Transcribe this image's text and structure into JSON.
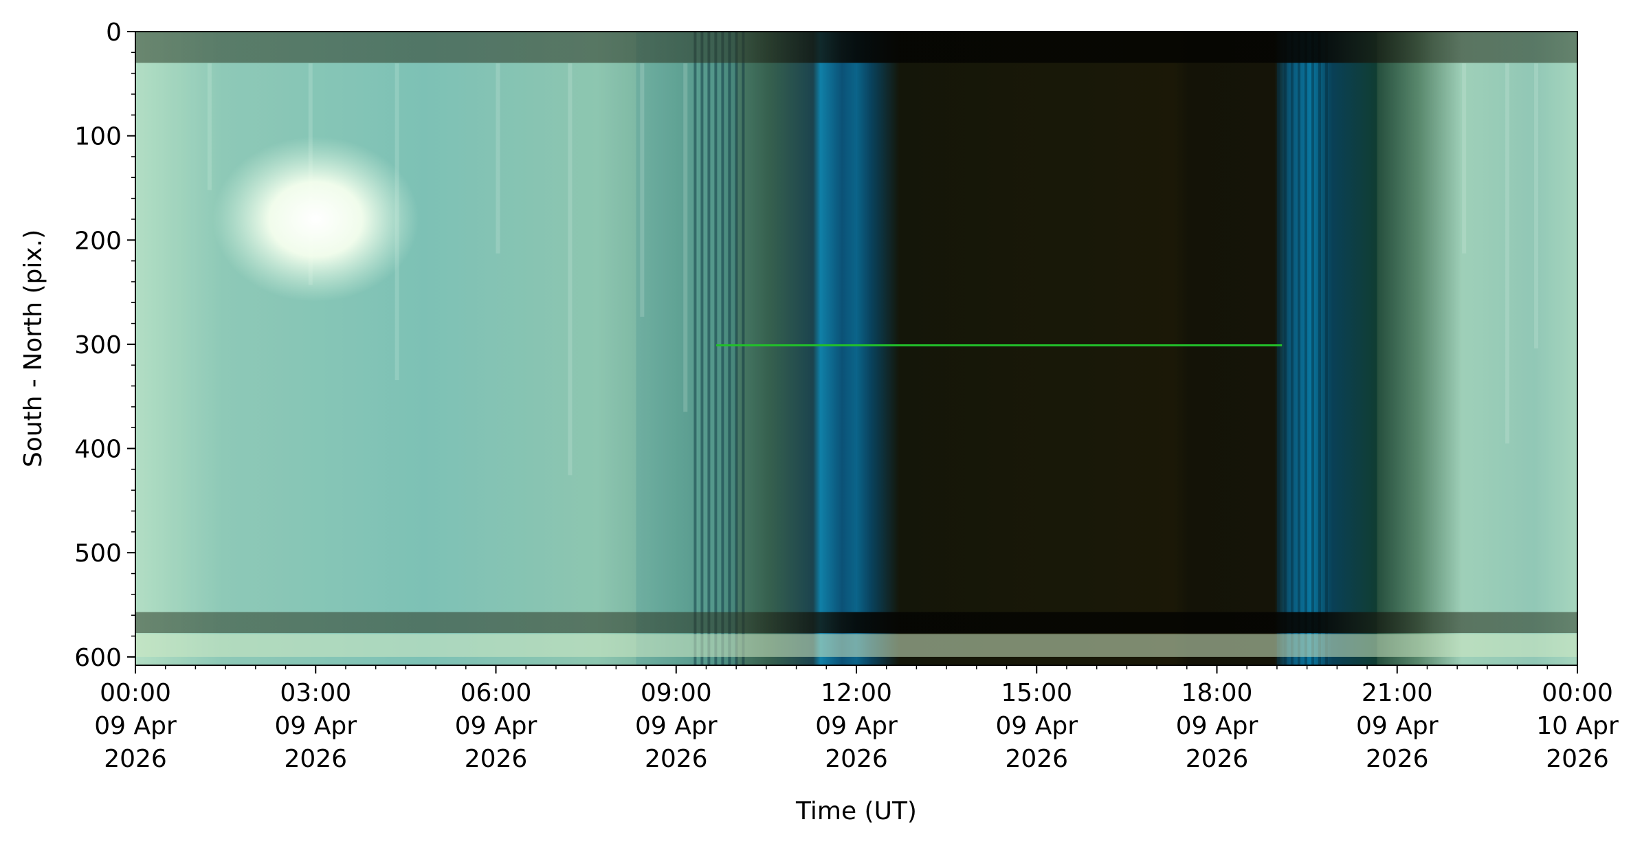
{
  "chart_data": {
    "type": "heatmap",
    "title": "",
    "xlabel": "Time (UT)",
    "ylabel": "South - North (pix.)",
    "x_range": [
      "2026-04-09T00:00",
      "2026-04-10T00:00"
    ],
    "ylim": [
      608,
      0
    ],
    "y_inverted": true,
    "x_ticks": [
      {
        "value": "2026-04-09T00:00",
        "label": [
          "00:00",
          "09 Apr",
          "2026"
        ]
      },
      {
        "value": "2026-04-09T03:00",
        "label": [
          "03:00",
          "09 Apr",
          "2026"
        ]
      },
      {
        "value": "2026-04-09T06:00",
        "label": [
          "06:00",
          "09 Apr",
          "2026"
        ]
      },
      {
        "value": "2026-04-09T09:00",
        "label": [
          "09:00",
          "09 Apr",
          "2026"
        ]
      },
      {
        "value": "2026-04-09T12:00",
        "label": [
          "12:00",
          "09 Apr",
          "2026"
        ]
      },
      {
        "value": "2026-04-09T15:00",
        "label": [
          "15:00",
          "09 Apr",
          "2026"
        ]
      },
      {
        "value": "2026-04-09T18:00",
        "label": [
          "18:00",
          "09 Apr",
          "2026"
        ]
      },
      {
        "value": "2026-04-09T21:00",
        "label": [
          "21:00",
          "09 Apr",
          "2026"
        ]
      },
      {
        "value": "2026-04-10T00:00",
        "label": [
          "00:00",
          "10 Apr",
          "2026"
        ]
      }
    ],
    "y_ticks": [
      0,
      100,
      200,
      300,
      400,
      500,
      600
    ],
    "grid": false,
    "legend": "none",
    "image_regions": [
      {
        "name": "day-sky-morning",
        "x_start": "2026-04-09T00:00",
        "x_end": "2026-04-09T08:20",
        "color": "#8ec6b4"
      },
      {
        "name": "dawn-twilight",
        "x_start": "2026-04-09T08:20",
        "x_end": "2026-04-09T10:00",
        "color": "#0a6f96"
      },
      {
        "name": "night",
        "x_start": "2026-04-09T10:00",
        "x_end": "2026-04-09T19:00",
        "color": "#1a1606"
      },
      {
        "name": "dusk-twilight",
        "x_start": "2026-04-09T19:00",
        "x_end": "2026-04-09T20:40",
        "color": "#0a5a7a"
      },
      {
        "name": "day-sky-evening",
        "x_start": "2026-04-09T20:40",
        "x_end": "2026-04-10T00:00",
        "color": "#a6d4be"
      }
    ],
    "features": [
      {
        "name": "sun",
        "x": "2026-04-09T03:00",
        "y": 180
      },
      {
        "name": "green-line",
        "x_start": "2026-04-09T09:40",
        "x_end": "2026-04-09T19:05",
        "y": 301,
        "color": "#22c02a"
      }
    ],
    "colors": {
      "day": "#9fd2bd",
      "twilight": "#0b7aa6",
      "night": "#171306",
      "emission_line": "#22c02a"
    }
  }
}
